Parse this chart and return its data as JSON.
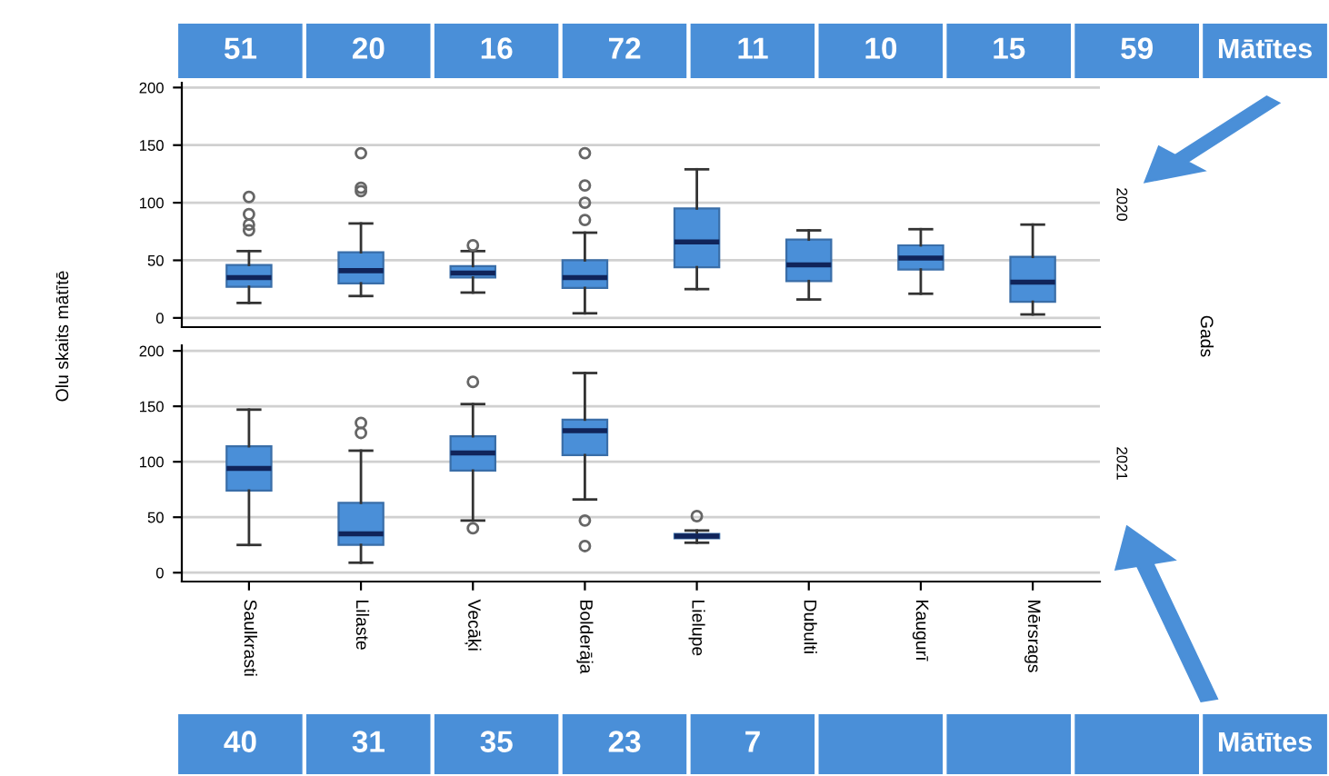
{
  "chart_data": [
    {
      "type": "box",
      "ylabel": "Olu skaits mātītē",
      "y2label": "Gads",
      "categories": [
        null,
        null,
        null,
        null,
        null,
        null,
        null,
        null
      ],
      "boxes": [
        {
          "low": 13,
          "q1": 27,
          "median": 35,
          "q3": 46,
          "high": 58,
          "outliers": [
            76,
            81,
            90,
            105
          ]
        },
        {
          "low": 19,
          "q1": 30,
          "median": 41,
          "q3": 57,
          "high": 82,
          "outliers": [
            110,
            113,
            143
          ]
        },
        {
          "low": 22,
          "q1": 35,
          "median": 39,
          "q3": 45,
          "high": 58,
          "outliers": [
            63
          ]
        },
        {
          "low": 4,
          "q1": 26,
          "median": 35,
          "q3": 50,
          "high": 74,
          "outliers": [
            85,
            100,
            115,
            143
          ]
        },
        {
          "low": 25,
          "q1": 44,
          "median": 66,
          "q3": 95,
          "high": 129
        },
        {
          "low": 16,
          "q1": 32,
          "median": 46,
          "q3": 68,
          "high": 76
        },
        {
          "low": 21,
          "q1": 42,
          "median": 52,
          "q3": 63,
          "high": 77
        },
        {
          "low": 3,
          "q1": 14,
          "median": 31,
          "q3": 53,
          "high": 81
        }
      ],
      "color": "#4a8fd8",
      "ylim": [
        -8,
        205
      ],
      "yticks": [
        0,
        50,
        100,
        150,
        200
      ],
      "grid": "y",
      "tick_labels": "y",
      "annotations": [
        "2020",
        "51",
        "20",
        "16",
        "72",
        "11",
        "10",
        "15",
        "59",
        "Mātītes"
      ]
    },
    {
      "type": "box",
      "categories": [
        "Saulkrasti",
        "Lilaste",
        "Vecāķi",
        "Bolderāja",
        "Lielupe",
        "Dubulti",
        "Kaugurī",
        "Mērsrags"
      ],
      "boxes": [
        {
          "low": 25,
          "q1": 74,
          "median": 94,
          "q3": 114,
          "high": 147
        },
        {
          "low": 9,
          "q1": 25,
          "median": 35,
          "q3": 63,
          "high": 110,
          "outliers": [
            126,
            135
          ]
        },
        {
          "low": 47,
          "q1": 92,
          "median": 108,
          "q3": 123,
          "high": 152,
          "outliers": [
            40,
            172
          ]
        },
        {
          "low": 66,
          "q1": 106,
          "median": 128,
          "q3": 138,
          "high": 180,
          "outliers": [
            24,
            47
          ]
        },
        {
          "low": 27,
          "q1": 31,
          "median": 33,
          "q3": 35,
          "high": 38,
          "outliers": [
            51
          ]
        },
        null,
        null,
        null
      ],
      "color": "#4a8fd8",
      "ylim": [
        -8,
        205
      ],
      "yticks": [
        0,
        50,
        100,
        150,
        200
      ],
      "grid": "y",
      "annotations": [
        "2021",
        "40",
        "31",
        "35",
        "23",
        "7",
        "Mātītes"
      ]
    }
  ]
}
